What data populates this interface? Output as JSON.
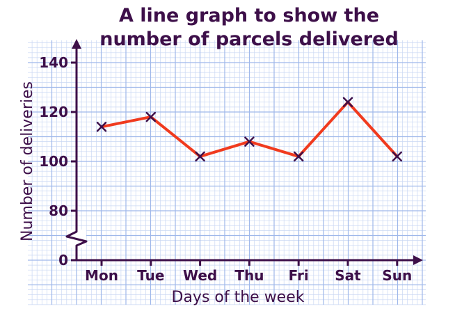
{
  "chart_data": {
    "type": "line",
    "title_lines": [
      "A line graph to show the",
      "number of parcels delivered"
    ],
    "xlabel": "Days of the week",
    "ylabel": "Number of deliveries",
    "categories": [
      "Mon",
      "Tue",
      "Wed",
      "Thu",
      "Fri",
      "Sat",
      "Sun"
    ],
    "series": [
      {
        "values": [
          114,
          118,
          102,
          108,
          102,
          124,
          102
        ]
      }
    ],
    "y_ticks": [
      0,
      80,
      100,
      120,
      140
    ],
    "y_axis_break": "between 0 and 80",
    "ylim": [
      75,
      145
    ],
    "grid": true,
    "line_color": "#f03a1e",
    "marker": "cross",
    "marker_color": "#3d0f49",
    "axis_color": "#3d0f49",
    "grid_color": "#9fb8ea"
  }
}
